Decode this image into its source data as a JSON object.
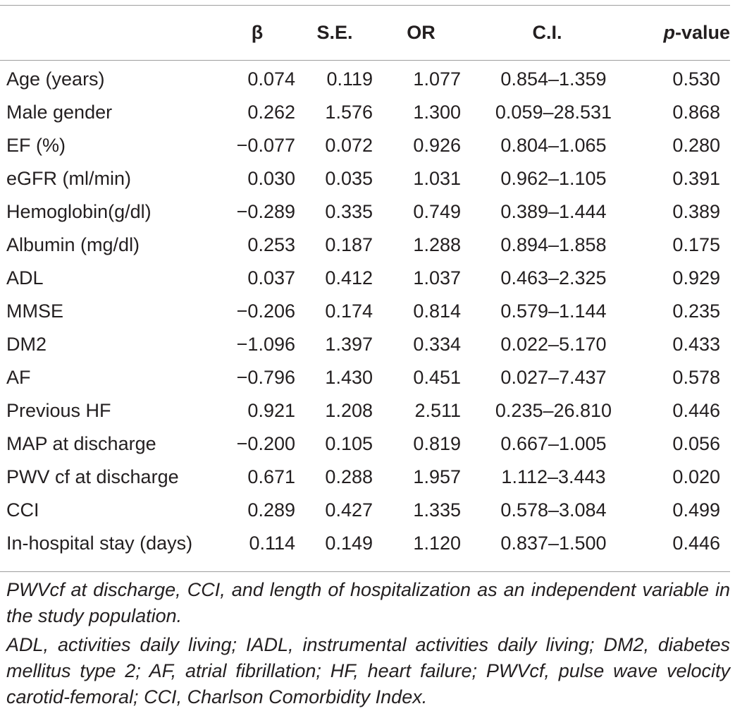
{
  "table": {
    "headers": {
      "label": "",
      "beta": "β",
      "se": "S.E.",
      "or": "OR",
      "ci": "C.I.",
      "p_prefix": "p",
      "p_suffix": "-value"
    },
    "rows": [
      {
        "label": "Age (years)",
        "beta": "0.074",
        "se": "0.119",
        "or": "1.077",
        "ci": "0.854–1.359",
        "p": "0.530"
      },
      {
        "label": "Male gender",
        "beta": "0.262",
        "se": "1.576",
        "or": "1.300",
        "ci": "0.059–28.531",
        "p": "0.868"
      },
      {
        "label": "EF (%)",
        "beta": "−0.077",
        "se": "0.072",
        "or": "0.926",
        "ci": "0.804–1.065",
        "p": "0.280"
      },
      {
        "label": "eGFR (ml/min)",
        "beta": "0.030",
        "se": "0.035",
        "or": "1.031",
        "ci": "0.962–1.105",
        "p": "0.391"
      },
      {
        "label": "Hemoglobin(g/dl)",
        "beta": "−0.289",
        "se": "0.335",
        "or": "0.749",
        "ci": "0.389–1.444",
        "p": "0.389"
      },
      {
        "label": "Albumin (mg/dl)",
        "beta": "0.253",
        "se": "0.187",
        "or": "1.288",
        "ci": "0.894–1.858",
        "p": "0.175"
      },
      {
        "label": "ADL",
        "beta": "0.037",
        "se": "0.412",
        "or": "1.037",
        "ci": "0.463–2.325",
        "p": "0.929"
      },
      {
        "label": "MMSE",
        "beta": "−0.206",
        "se": "0.174",
        "or": "0.814",
        "ci": "0.579–1.144",
        "p": "0.235"
      },
      {
        "label": "DM2",
        "beta": "−1.096",
        "se": "1.397",
        "or": "0.334",
        "ci": "0.022–5.170",
        "p": "0.433"
      },
      {
        "label": "AF",
        "beta": "−0.796",
        "se": "1.430",
        "or": "0.451",
        "ci": "0.027–7.437",
        "p": "0.578"
      },
      {
        "label": "Previous HF",
        "beta": "0.921",
        "se": "1.208",
        "or": "2.511",
        "ci": "0.235–26.810",
        "p": "0.446"
      },
      {
        "label": "MAP at discharge",
        "beta": "−0.200",
        "se": "0.105",
        "or": "0.819",
        "ci": "0.667–1.005",
        "p": "0.056"
      },
      {
        "label": "PWV cf at discharge",
        "beta": "0.671",
        "se": "0.288",
        "or": "1.957",
        "ci": "1.112–3.443",
        "p": "0.020"
      },
      {
        "label": "CCI",
        "beta": "0.289",
        "se": "0.427",
        "or": "1.335",
        "ci": "0.578–3.084",
        "p": "0.499"
      },
      {
        "label": "In-hospital stay (days)",
        "beta": "0.114",
        "se": "0.149",
        "or": "1.120",
        "ci": "0.837–1.500",
        "p": "0.446"
      }
    ]
  },
  "footnotes": {
    "caption": "PWVcf at discharge, CCI, and length of hospitalization as an independent variable in the study population.",
    "abbreviations": "ADL, activities daily living; IADL, instrumental activities daily living; DM2, diabetes mellitus type 2; AF, atrial fibrillation; HF, heart failure; PWVcf, pulse wave velocity carotid-femoral; CCI, Charlson Comorbidity Index."
  }
}
